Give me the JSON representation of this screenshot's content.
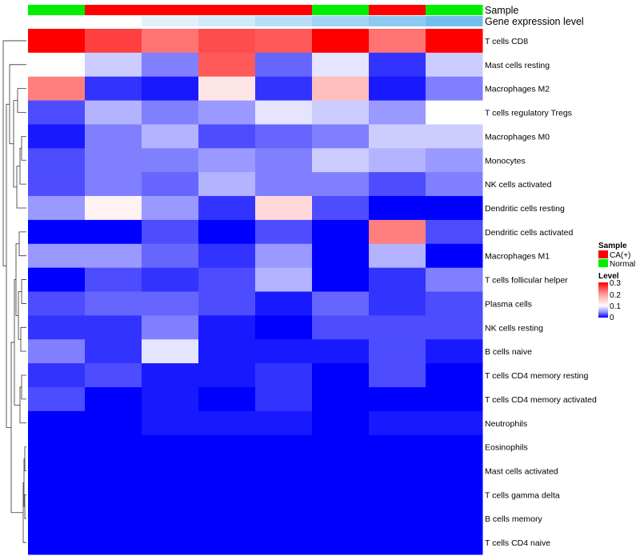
{
  "chart_data": {
    "type": "heatmap",
    "rows": [
      "T cells CD8",
      "Mast cells resting",
      "Macrophages M2",
      "T cells regulatory  Tregs",
      "Macrophages M0",
      "Monocytes",
      "NK cells activated",
      "Dendritic cells resting",
      "Dendritic cells activated",
      "Macrophages M1",
      "T cells follicular helper",
      "Plasma cells",
      "NK cells resting",
      "B cells naive",
      "T cells CD4 memory resting",
      "T cells CD4 memory activated",
      "Neutrophils",
      "Eosinophils",
      "Mast cells activated",
      "T cells gamma delta",
      "B cells memory",
      "T cells CD4 naive"
    ],
    "columns": 8,
    "values": [
      [
        0.3,
        0.25,
        0.21,
        0.24,
        0.23,
        0.3,
        0.21,
        0.3
      ],
      [
        0.1,
        0.08,
        0.05,
        0.23,
        0.04,
        0.09,
        0.02,
        0.08
      ],
      [
        0.2,
        0.02,
        0.01,
        0.12,
        0.02,
        0.15,
        0.01,
        0.05
      ],
      [
        0.03,
        0.07,
        0.05,
        0.06,
        0.09,
        0.08,
        0.06,
        0.1
      ],
      [
        0.01,
        0.05,
        0.07,
        0.03,
        0.04,
        0.05,
        0.08,
        0.08
      ],
      [
        0.03,
        0.05,
        0.05,
        0.06,
        0.05,
        0.08,
        0.07,
        0.06
      ],
      [
        0.03,
        0.05,
        0.04,
        0.07,
        0.05,
        0.05,
        0.03,
        0.05
      ],
      [
        0.06,
        0.11,
        0.06,
        0.02,
        0.13,
        0.03,
        0.0,
        0.0
      ],
      [
        0.0,
        0.0,
        0.03,
        0.0,
        0.03,
        0.0,
        0.2,
        0.03
      ],
      [
        0.06,
        0.06,
        0.04,
        0.02,
        0.06,
        0.0,
        0.07,
        0.0
      ],
      [
        0.0,
        0.03,
        0.02,
        0.03,
        0.07,
        0.0,
        0.02,
        0.05
      ],
      [
        0.03,
        0.04,
        0.04,
        0.03,
        0.01,
        0.04,
        0.02,
        0.03
      ],
      [
        0.02,
        0.02,
        0.05,
        0.01,
        0.0,
        0.03,
        0.03,
        0.03
      ],
      [
        0.05,
        0.02,
        0.09,
        0.01,
        0.01,
        0.01,
        0.03,
        0.01
      ],
      [
        0.02,
        0.03,
        0.01,
        0.01,
        0.02,
        0.0,
        0.03,
        0.0
      ],
      [
        0.03,
        0.0,
        0.01,
        0.0,
        0.02,
        0.0,
        0.0,
        0.0
      ],
      [
        0.0,
        0.0,
        0.01,
        0.01,
        0.01,
        0.0,
        0.01,
        0.01
      ],
      [
        0.0,
        0.0,
        0.0,
        0.0,
        0.0,
        0.0,
        0.0,
        0.0
      ],
      [
        0.0,
        0.0,
        0.0,
        0.0,
        0.0,
        0.0,
        0.0,
        0.0
      ],
      [
        0.0,
        0.0,
        0.0,
        0.0,
        0.0,
        0.0,
        0.0,
        0.0
      ],
      [
        0.0,
        0.0,
        0.0,
        0.0,
        0.0,
        0.0,
        0.0,
        0.0
      ],
      [
        0.0,
        0.0,
        0.0,
        0.0,
        0.0,
        0.0,
        0.0,
        0.0
      ]
    ],
    "color_scale": {
      "min": 0,
      "mid": 0.1,
      "max": 0.3,
      "low_color": "#0000ff",
      "mid_color": "#ffffff",
      "high_color": "#ff0000"
    },
    "annotations": [
      {
        "name": "Sample",
        "values": [
          "Normal",
          "CA(+)",
          "CA(+)",
          "CA(+)",
          "CA(+)",
          "Normal",
          "CA(+)",
          "Normal"
        ],
        "colors": {
          "CA(+)": "#ff0000",
          "Normal": "#00ee00"
        }
      },
      {
        "name": "Gene expression level",
        "values": [
          0,
          1,
          2,
          3,
          4,
          5,
          6,
          7
        ],
        "colors_by_value": [
          "#ffffff",
          "#ffffff",
          "#e1f0fb",
          "#d1eaf9",
          "#b7def6",
          "#a1d4f3",
          "#8ccaf0",
          "#73beec"
        ]
      }
    ],
    "legend": {
      "position": "right",
      "sample_title": "Sample",
      "sample_entries": [
        {
          "label": "CA(+)",
          "color": "#ff0000"
        },
        {
          "label": "Normal",
          "color": "#00ee00"
        }
      ],
      "level_title": "Level",
      "level_ticks": [
        "0.3",
        "0.2",
        "0.1",
        "0"
      ]
    },
    "row_dendrogram": true
  }
}
